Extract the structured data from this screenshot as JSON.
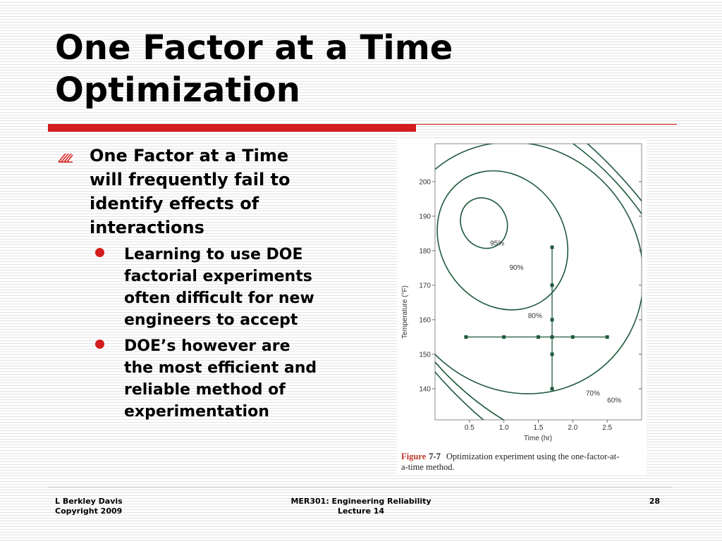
{
  "slide": {
    "title_line1": "One Factor at a Time",
    "title_line2": "Optimization",
    "bullets": {
      "main": [
        "One Factor at a Time",
        "will frequently fail to",
        "identify effects of",
        "interactions"
      ],
      "sub": [
        [
          "Learning to use DOE",
          "factorial experiments",
          "often difficult for new",
          "engineers to accept"
        ],
        [
          "DOE’s however are",
          "the most efficient and",
          "reliable method of",
          "experimentation"
        ]
      ]
    },
    "figure": {
      "caption_label": "Figure",
      "caption_number": "7-7",
      "caption_line1": "Optimization experiment using the one-factor-at-",
      "caption_line2": "a-time method.",
      "line_color": "#1f5a3c",
      "caption_color": "#c0392b"
    },
    "footer": {
      "author": "L Berkley Davis",
      "copyright": "Copyright 2009",
      "course": "MER301: Engineering Reliability",
      "lecture": "Lecture 14",
      "page_number": "28"
    },
    "colors": {
      "accent_red": "#d41c1c",
      "background_stripe": "#e3e3e3"
    }
  },
  "chart_data": {
    "type": "scatter",
    "xlabel": "Time (hr)",
    "ylabel": "Temperature (°F)",
    "xlim": [
      0.0,
      3.0
    ],
    "ylim": [
      131,
      211
    ],
    "x_ticks": [
      "0.5",
      "1.0",
      "1.5",
      "2.0",
      "2.5"
    ],
    "y_ticks": [
      "140",
      "150",
      "160",
      "170",
      "180",
      "190",
      "200"
    ],
    "contours": [
      {
        "label": "95%",
        "center": [
          0.71,
          188.0
        ],
        "rx": 0.33,
        "ry": 7.5,
        "rotation": -28,
        "label_at": [
          0.8,
          181.5
        ]
      },
      {
        "label": "90%",
        "center": [
          0.98,
          183.0
        ],
        "rx": 0.9,
        "ry": 21.0,
        "rotation": -33,
        "label_at": [
          1.08,
          174.5
        ]
      },
      {
        "label": "80%",
        "center": [
          1.22,
          175.0
        ],
        "rx": 1.75,
        "ry": 37.5,
        "rotation": -40,
        "label_at": [
          1.35,
          160.5
        ]
      },
      {
        "label": "70%",
        "center": [
          1.35,
          173.0
        ],
        "rx": 1.85,
        "ry": 58.0,
        "rotation": -40,
        "label_at": [
          2.19,
          138.0
        ]
      },
      {
        "label": "60%",
        "center": [
          1.4,
          172.0
        ],
        "rx": 1.95,
        "ry": 74.0,
        "rotation": -40,
        "label_at": [
          2.5,
          136.0
        ]
      }
    ],
    "points": [
      {
        "x": 0.45,
        "y": 155
      },
      {
        "x": 1.0,
        "y": 155
      },
      {
        "x": 1.5,
        "y": 155
      },
      {
        "x": 1.7,
        "y": 155
      },
      {
        "x": 2.0,
        "y": 155
      },
      {
        "x": 2.5,
        "y": 155
      },
      {
        "x": 1.7,
        "y": 140
      },
      {
        "x": 1.7,
        "y": 150
      },
      {
        "x": 1.7,
        "y": 160
      },
      {
        "x": 1.7,
        "y": 170
      },
      {
        "x": 1.7,
        "y": 181
      }
    ],
    "segments": [
      {
        "from": [
          0.45,
          155
        ],
        "to": [
          2.5,
          155
        ]
      },
      {
        "from": [
          1.7,
          140
        ],
        "to": [
          1.7,
          181
        ]
      }
    ]
  }
}
